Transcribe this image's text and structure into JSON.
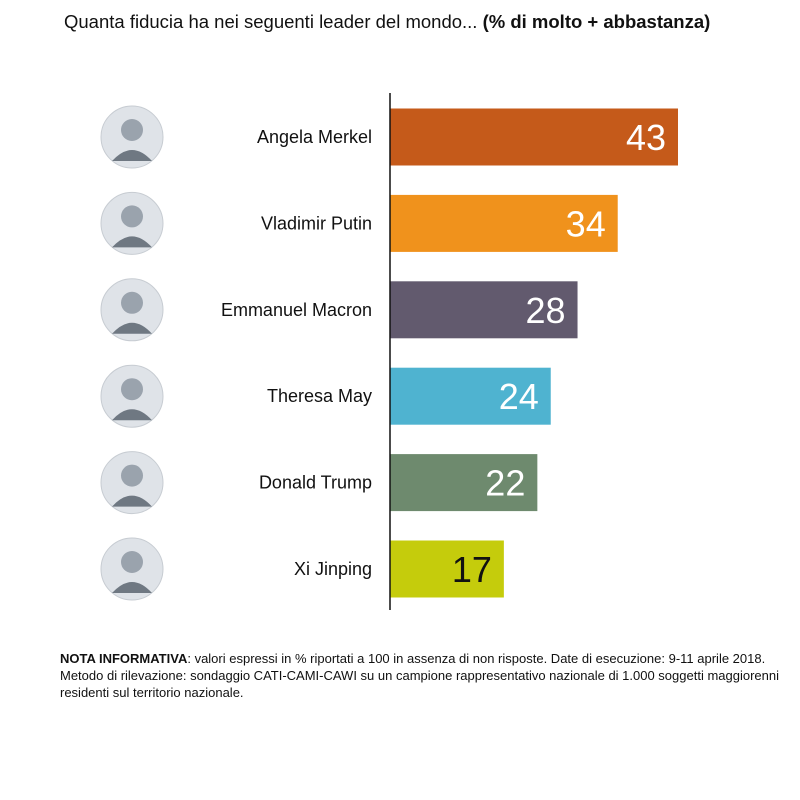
{
  "title": {
    "main": "Quanta fiducia ha nei seguenti leader del mondo...",
    "emphasis": "(% di molto + abbastanza)"
  },
  "chart_data": {
    "type": "bar",
    "orientation": "horizontal",
    "title": "Quanta fiducia ha nei seguenti leader del mondo... (% di molto + abbastanza)",
    "categories": [
      "Angela Merkel",
      "Vladimir Putin",
      "Emmanuel Macron",
      "Theresa May",
      "Donald Trump",
      "Xi Jinping"
    ],
    "values": [
      43,
      34,
      28,
      24,
      22,
      17
    ],
    "colors": [
      "#c55a1a",
      "#f0921c",
      "#625a6e",
      "#4fb3d0",
      "#6e8a6e",
      "#c5cc0c"
    ],
    "label_colors": [
      "#ffffff",
      "#ffffff",
      "#ffffff",
      "#ffffff",
      "#ffffff",
      "#111111"
    ],
    "xlim": [
      0,
      50
    ],
    "grid": false,
    "legend": "none",
    "axis_color": "#111111",
    "avatar_icons": [
      "person-avatar-icon",
      "person-avatar-icon",
      "person-avatar-icon",
      "person-avatar-icon",
      "person-avatar-icon",
      "person-avatar-icon"
    ]
  },
  "note": {
    "label": "NOTA INFORMATIVA",
    "text": ": valori espressi in % riportati a 100 in assenza di non risposte. Date di esecuzione: 9-11 aprile 2018. Metodo di rilevazione: sondaggio CATI-CAMI-CAWI su un campione rappresentativo nazionale di 1.000 soggetti maggiorenni residenti sul territorio nazionale."
  }
}
